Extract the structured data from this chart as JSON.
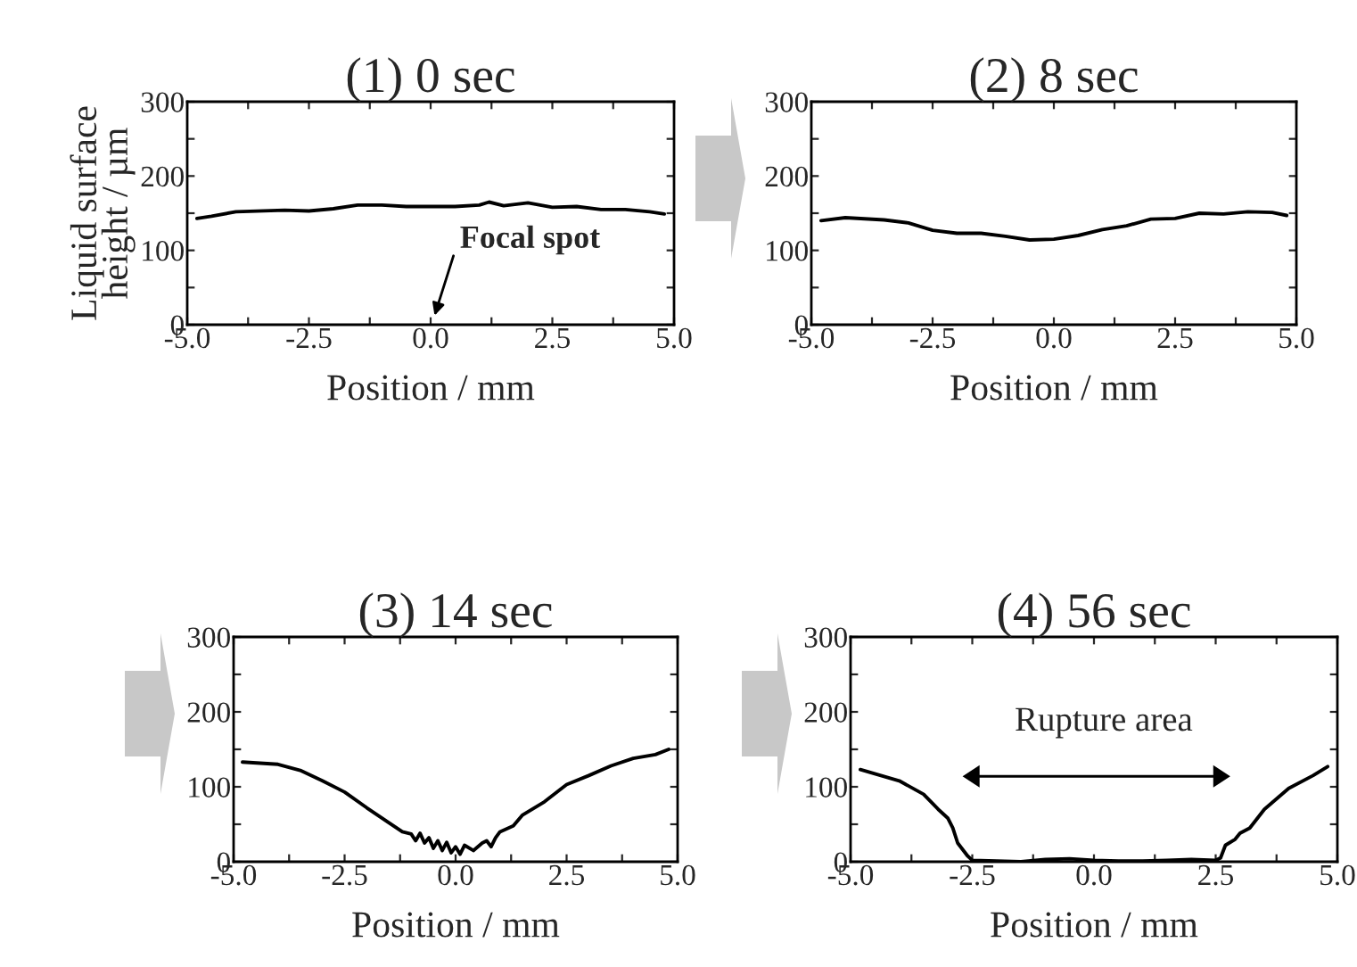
{
  "chart_data": [
    {
      "type": "line",
      "title": "(1) 0 sec",
      "xlabel": "Position / mm",
      "ylabel": "Liquid surface\nheight / µm",
      "xlim": [
        -5,
        5
      ],
      "ylim": [
        0,
        300
      ],
      "xticks": [
        {
          "value": -5,
          "label": "-5.0"
        },
        {
          "value": -3.75,
          "label": null
        },
        {
          "value": -2.5,
          "label": "-2.5"
        },
        {
          "value": -1.25,
          "label": null
        },
        {
          "value": 0,
          "label": "0.0"
        },
        {
          "value": 1.25,
          "label": null
        },
        {
          "value": 2.5,
          "label": "2.5"
        },
        {
          "value": 3.75,
          "label": null
        },
        {
          "value": 5,
          "label": "5.0"
        }
      ],
      "yticks": [
        0,
        {
          "value": 50,
          "label": null
        },
        100,
        {
          "value": 150,
          "label": null
        },
        200,
        {
          "value": 250,
          "label": null
        },
        300
      ],
      "annotations": [
        "Focal spot"
      ],
      "series": [
        {
          "color": "#000000",
          "x": [
            -4.8,
            -4.5,
            -4,
            -3,
            -2.5,
            -2,
            -1.5,
            -1,
            -0.5,
            0,
            0.5,
            1,
            1.2,
            1.5,
            2,
            2.5,
            3,
            3.5,
            4,
            4.5,
            4.8
          ],
          "values": [
            143,
            146,
            152,
            154,
            153,
            156,
            161,
            161,
            159,
            159,
            159,
            161,
            165,
            160,
            164,
            158,
            159,
            155,
            155,
            152,
            149
          ]
        }
      ]
    },
    {
      "type": "line",
      "title": "(2) 8 sec",
      "xlabel": "Position / mm",
      "xlim": [
        -5,
        5
      ],
      "ylim": [
        0,
        300
      ],
      "xticks": [
        {
          "value": -5,
          "label": "-5.0"
        },
        {
          "value": -3.75,
          "label": null
        },
        {
          "value": -2.5,
          "label": "-2.5"
        },
        {
          "value": -1.25,
          "label": null
        },
        {
          "value": 0,
          "label": "0.0"
        },
        {
          "value": 1.25,
          "label": null
        },
        {
          "value": 2.5,
          "label": "2.5"
        },
        {
          "value": 3.75,
          "label": null
        },
        {
          "value": 5,
          "label": "5.0"
        }
      ],
      "yticks": [
        0,
        {
          "value": 50,
          "label": null
        },
        100,
        {
          "value": 150,
          "label": null
        },
        200,
        {
          "value": 250,
          "label": null
        },
        300
      ],
      "series": [
        {
          "color": "#000000",
          "x": [
            -4.8,
            -4.3,
            -3.5,
            -3,
            -2.5,
            -2,
            -1.5,
            -1,
            -0.5,
            0,
            0.5,
            1,
            1.5,
            2,
            2.5,
            3,
            3.5,
            4,
            4.5,
            4.8
          ],
          "values": [
            140,
            144,
            141,
            137,
            127,
            123,
            123,
            119,
            114,
            115,
            120,
            128,
            133,
            142,
            143,
            150,
            149,
            152,
            151,
            147
          ]
        }
      ]
    },
    {
      "type": "line",
      "title": "(3) 14 sec",
      "xlabel": "Position / mm",
      "xlim": [
        -5,
        5
      ],
      "ylim": [
        0,
        300
      ],
      "xticks": [
        {
          "value": -5,
          "label": "-5.0"
        },
        {
          "value": -3.75,
          "label": null
        },
        {
          "value": -2.5,
          "label": "-2.5"
        },
        {
          "value": -1.25,
          "label": null
        },
        {
          "value": 0,
          "label": "0.0"
        },
        {
          "value": 1.25,
          "label": null
        },
        {
          "value": 2.5,
          "label": "2.5"
        },
        {
          "value": 3.75,
          "label": null
        },
        {
          "value": 5,
          "label": "5.0"
        }
      ],
      "yticks": [
        0,
        {
          "value": 50,
          "label": null
        },
        100,
        {
          "value": 150,
          "label": null
        },
        200,
        {
          "value": 250,
          "label": null
        },
        300
      ],
      "series": [
        {
          "color": "#000000",
          "x": [
            -4.8,
            -4,
            -3.5,
            -3,
            -2.5,
            -2,
            -1.5,
            -1.2,
            -1,
            -0.9,
            -0.8,
            -0.7,
            -0.6,
            -0.5,
            -0.4,
            -0.3,
            -0.2,
            -0.1,
            0,
            0.1,
            0.2,
            0.4,
            0.6,
            0.7,
            0.8,
            0.9,
            1,
            1.3,
            1.5,
            2,
            2.5,
            3,
            3.5,
            4,
            4.5,
            4.8
          ],
          "values": [
            133,
            130,
            122,
            108,
            93,
            72,
            52,
            40,
            37,
            28,
            38,
            25,
            32,
            18,
            28,
            15,
            26,
            12,
            20,
            10,
            22,
            15,
            25,
            28,
            20,
            32,
            40,
            48,
            62,
            80,
            103,
            115,
            128,
            138,
            143,
            150
          ]
        }
      ]
    },
    {
      "type": "line",
      "title": "(4) 56 sec",
      "xlabel": "Position / mm",
      "xlim": [
        -5,
        5
      ],
      "ylim": [
        0,
        300
      ],
      "xticks": [
        {
          "value": -5,
          "label": "-5.0"
        },
        {
          "value": -3.75,
          "label": null
        },
        {
          "value": -2.5,
          "label": "-2.5"
        },
        {
          "value": -1.25,
          "label": null
        },
        {
          "value": 0,
          "label": "0.0"
        },
        {
          "value": 1.25,
          "label": null
        },
        {
          "value": 2.5,
          "label": "2.5"
        },
        {
          "value": 3.75,
          "label": null
        },
        {
          "value": 5,
          "label": "5.0"
        }
      ],
      "yticks": [
        0,
        {
          "value": 50,
          "label": null
        },
        100,
        {
          "value": 150,
          "label": null
        },
        200,
        {
          "value": 250,
          "label": null
        },
        300
      ],
      "annotations": [
        "Rupture area"
      ],
      "series": [
        {
          "color": "#000000",
          "x": [
            -4.8,
            -4,
            -3.5,
            -3.2,
            -3,
            -2.9,
            -2.8,
            -2.6,
            -2.5,
            -2,
            -1.5,
            -1,
            -0.5,
            0,
            0.5,
            1,
            1.5,
            2,
            2.5,
            2.6,
            2.7,
            2.9,
            3,
            3.2,
            3.5,
            4,
            4.5,
            4.8
          ],
          "values": [
            123,
            108,
            90,
            70,
            58,
            45,
            25,
            8,
            2,
            1,
            0,
            3,
            4,
            2,
            1,
            1,
            2,
            3,
            2,
            5,
            22,
            30,
            38,
            45,
            70,
            98,
            115,
            127
          ]
        }
      ]
    }
  ]
}
